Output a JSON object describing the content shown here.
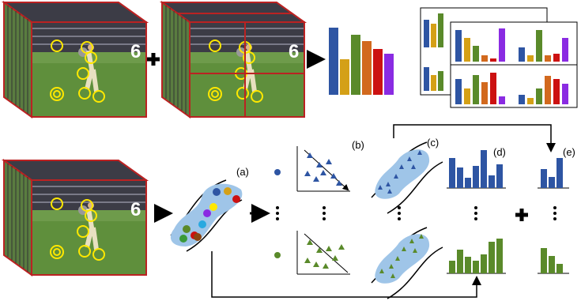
{
  "labels": {
    "a": "(a)",
    "b": "(b)",
    "c": "(c)",
    "d": "(d)",
    "e": "(e)"
  }
}
